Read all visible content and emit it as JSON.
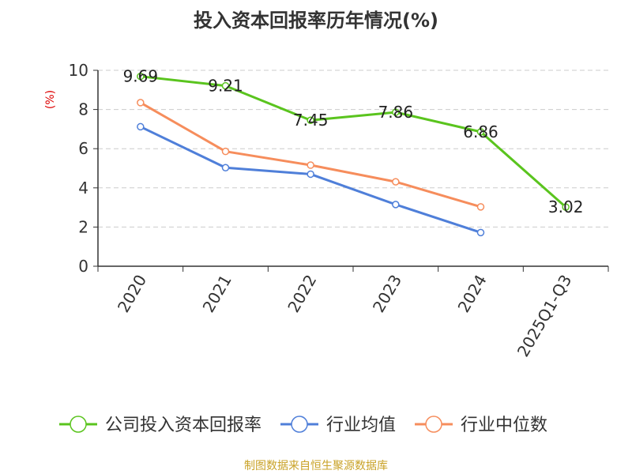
{
  "chart_data": {
    "type": "line",
    "title": "投入资本回报率历年情况(%)",
    "ylabel": "(%)",
    "xlabel": "",
    "ylim": [
      0,
      10
    ],
    "yticks": [
      0,
      2,
      4,
      6,
      8,
      10
    ],
    "grid": true,
    "legend_position": "bottom",
    "categories": [
      "2020",
      "2021",
      "2022",
      "2023",
      "2024",
      "2025Q1-Q3"
    ],
    "series": [
      {
        "name": "公司投入资本回报率",
        "color": "#5ac41e",
        "values": [
          9.69,
          9.21,
          7.45,
          7.86,
          6.86,
          3.02
        ],
        "show_labels": true
      },
      {
        "name": "行业均值",
        "color": "#4f7fd9",
        "values": [
          7.12,
          5.03,
          4.7,
          3.15,
          1.72,
          null
        ],
        "show_labels": false
      },
      {
        "name": "行业中位数",
        "color": "#f68d5c",
        "values": [
          8.35,
          5.86,
          5.16,
          4.31,
          3.03,
          null
        ],
        "show_labels": false
      }
    ]
  },
  "source": "制图数据来自恒生聚源数据库",
  "colors": {
    "axis": "#333333",
    "grid": "#cccccc",
    "ylabel": "#dd0000",
    "source": "#c9a227"
  }
}
